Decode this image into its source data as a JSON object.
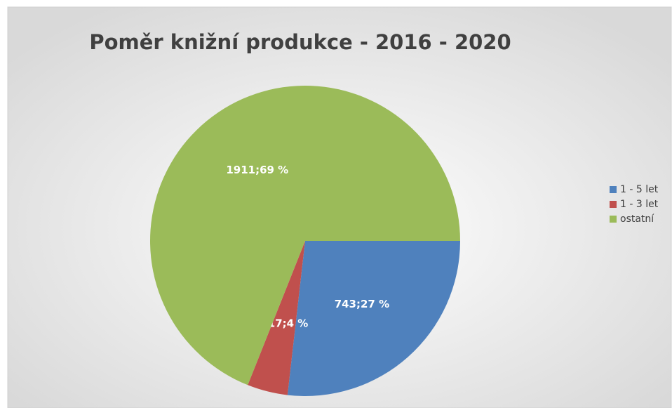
{
  "chart_data": {
    "type": "pie",
    "title": "Poměr knižní produkce - 2016 - 2020",
    "categories": [
      "1 - 5 let",
      "1 - 3 let",
      "ostatní"
    ],
    "values": [
      743,
      117,
      1911
    ],
    "value_labels": [
      "743;27 %",
      "117;4 %",
      "1911;69 %"
    ],
    "colors": [
      "#4f81bd",
      "#c0504d",
      "#9bbb59"
    ],
    "legend": "right"
  }
}
